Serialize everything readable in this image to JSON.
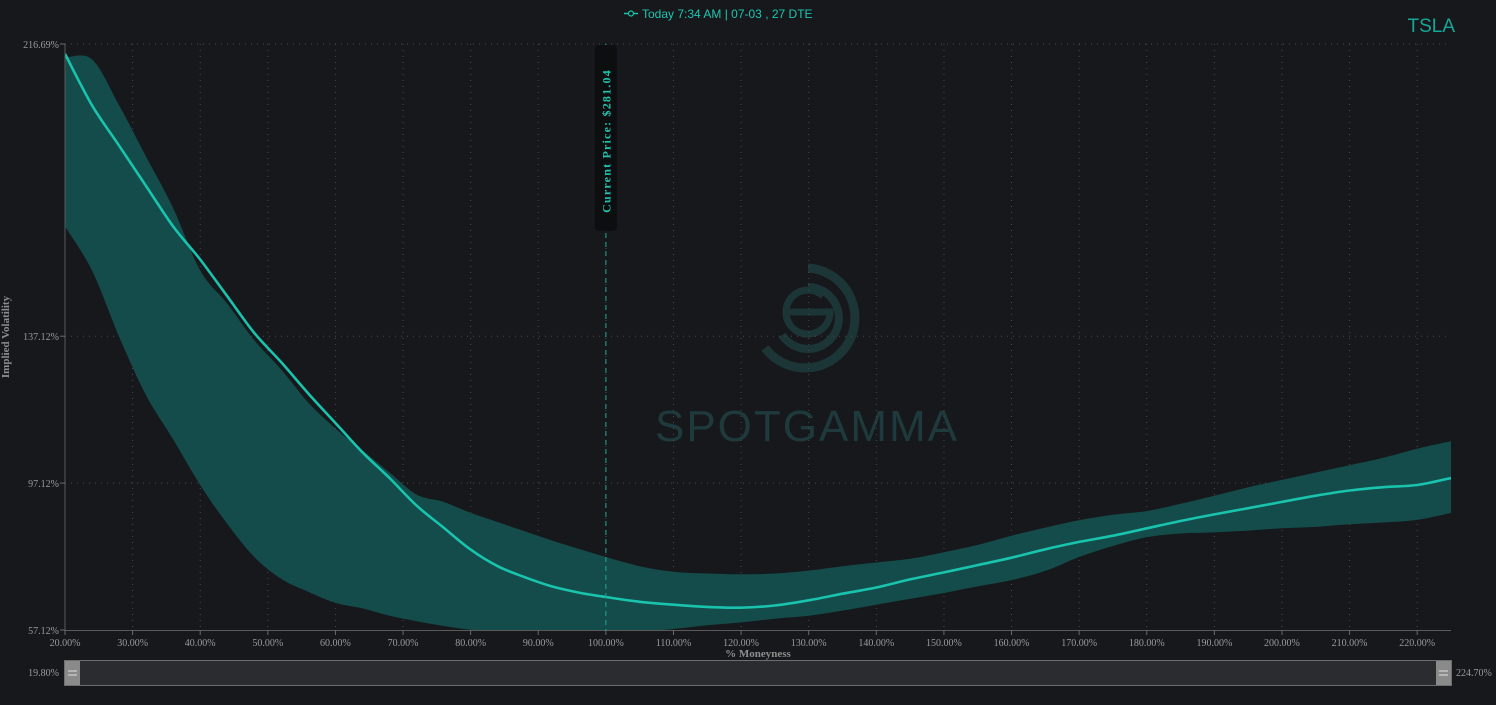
{
  "legend": {
    "label": "Today 7:34 AM | 07-03 , 27 DTE"
  },
  "ticker": "TSLA",
  "watermark": "SPOTGAMMA",
  "current_price_label": "Current Price: $281.04",
  "range_slider": {
    "min_label": "19.80%",
    "max_label": "224.70%"
  },
  "colors": {
    "line": "#19c3ad",
    "band": "#134c4a",
    "accent": "#1aa89a",
    "background": "#17181c"
  },
  "chart_data": {
    "type": "line",
    "xlabel": "% Moneyness",
    "ylabel": "Implied Volatility",
    "xlim": [
      20,
      225
    ],
    "ylim": [
      57.12,
      216.69
    ],
    "x_ticks": [
      20,
      30,
      40,
      50,
      60,
      70,
      80,
      90,
      100,
      110,
      120,
      130,
      140,
      150,
      160,
      170,
      180,
      190,
      200,
      210,
      220
    ],
    "x_tick_labels": [
      "20.00%",
      "30.00%",
      "40.00%",
      "50.00%",
      "60.00%",
      "70.00%",
      "80.00%",
      "90.00%",
      "100.00%",
      "110.00%",
      "120.00%",
      "130.00%",
      "140.00%",
      "150.00%",
      "160.00%",
      "170.00%",
      "180.00%",
      "190.00%",
      "200.00%",
      "210.00%",
      "220.00%"
    ],
    "y_ticks": [
      57.12,
      97.12,
      137.12,
      216.69
    ],
    "y_tick_labels": [
      "57.12%",
      "97.12%",
      "137.12%",
      "216.69%"
    ],
    "grid": true,
    "current_price_x": 100,
    "series": [
      {
        "name": "Today 7:34 AM | 07-03 , 27 DTE",
        "x": [
          20,
          24,
          28,
          32,
          36,
          40,
          44,
          48,
          52,
          56,
          60,
          64,
          68,
          72,
          76,
          80,
          84,
          88,
          92,
          96,
          100,
          105,
          110,
          115,
          120,
          125,
          130,
          135,
          140,
          145,
          150,
          155,
          160,
          165,
          170,
          175,
          180,
          185,
          190,
          195,
          200,
          205,
          210,
          215,
          220,
          225
        ],
        "values": [
          214,
          200,
          189,
          178,
          167,
          158,
          148,
          138,
          130,
          121.5,
          113.5,
          105.5,
          98.5,
          91,
          85,
          79,
          74.5,
          71.5,
          69,
          67.3,
          66.1,
          64.8,
          64,
          63.4,
          63.2,
          63.8,
          65.2,
          67,
          68.7,
          70.9,
          72.8,
          74.8,
          76.8,
          79.1,
          81.1,
          82.8,
          84.8,
          86.8,
          88.6,
          90.3,
          92,
          93.7,
          95.1,
          96,
          96.6,
          98.5
        ],
        "upper": [
          213,
          212.5,
          200,
          186,
          172,
          155,
          146,
          136,
          128,
          119,
          112,
          106,
          100,
          94,
          92,
          89,
          86.5,
          84,
          81.5,
          79.2,
          77,
          74.5,
          73,
          72.5,
          72.3,
          72.5,
          73.3,
          74.5,
          75.5,
          76.5,
          78.3,
          80.3,
          82.8,
          85,
          87,
          88.5,
          89.5,
          91.5,
          93.7,
          96,
          98,
          100,
          102,
          104,
          106.5,
          108.5
        ],
        "lower": [
          167,
          155,
          137,
          121,
          109,
          96.6,
          86,
          77,
          71,
          67.5,
          64.5,
          63,
          61,
          59.5,
          58.2,
          57.2,
          56.9,
          56.7,
          56.5,
          56.4,
          56.4,
          56.6,
          57.4,
          58.4,
          59.2,
          60.2,
          61,
          62.4,
          64,
          65.6,
          67.2,
          69,
          70.7,
          73.2,
          77,
          80,
          82.4,
          83.4,
          83.7,
          84.2,
          84.8,
          85.2,
          85.9,
          86.4,
          87.1,
          89
        ]
      }
    ]
  }
}
